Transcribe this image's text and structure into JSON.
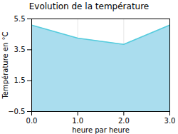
{
  "chart_data": {
    "type": "area",
    "title": "Evolution de la température",
    "xlabel": "heure par heure",
    "ylabel": "Température en °C",
    "x": [
      0,
      1,
      2,
      3
    ],
    "values": [
      5.1,
      4.25,
      3.85,
      5.1
    ],
    "xlim": [
      0,
      3
    ],
    "ylim": [
      -0.5,
      5.5
    ],
    "xticks": [
      0,
      1,
      2,
      3
    ],
    "yticks": [
      -0.5,
      1.5,
      3.5,
      5.5
    ],
    "colors": [
      "#aaddee",
      "#55ccdd"
    ],
    "grid": true
  }
}
